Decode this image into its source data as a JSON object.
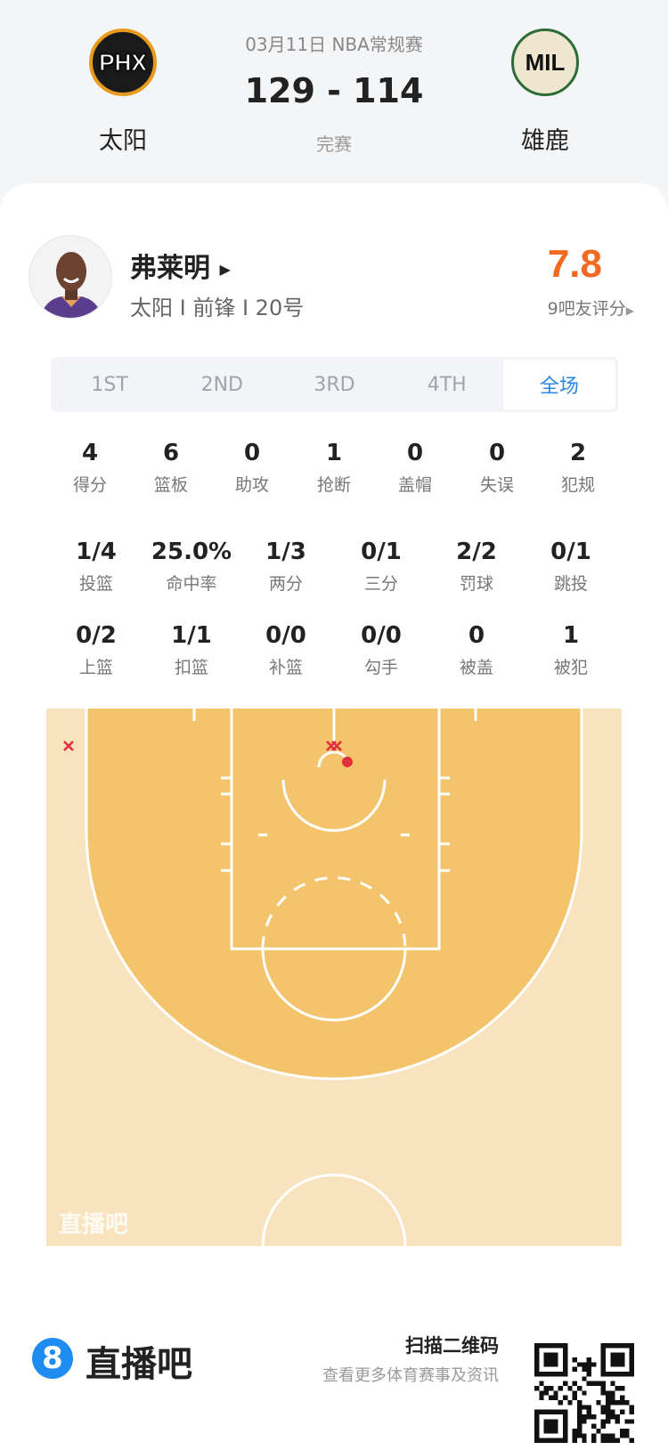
{
  "header": {
    "date_league": "03月11日 NBA常规赛",
    "score": "129 - 114",
    "status": "完赛",
    "home": {
      "abbr": "PHX",
      "name": "太阳"
    },
    "away": {
      "abbr": "MIL",
      "name": "雄鹿"
    }
  },
  "player": {
    "name": "弗莱明",
    "info": "太阳 I 前锋 I 20号",
    "rating": "7.8",
    "rating_label": "9吧友评分",
    "rating_color": "#f26a21"
  },
  "tabs": [
    {
      "label": "1ST"
    },
    {
      "label": "2ND"
    },
    {
      "label": "3RD"
    },
    {
      "label": "4TH"
    },
    {
      "label": "全场",
      "active": true
    }
  ],
  "stats_row1": [
    {
      "v": "4",
      "l": "得分"
    },
    {
      "v": "6",
      "l": "篮板"
    },
    {
      "v": "0",
      "l": "助攻"
    },
    {
      "v": "1",
      "l": "抢断"
    },
    {
      "v": "0",
      "l": "盖帽"
    },
    {
      "v": "0",
      "l": "失误"
    },
    {
      "v": "2",
      "l": "犯规"
    }
  ],
  "stats_row2": [
    {
      "v": "1/4",
      "l": "投篮"
    },
    {
      "v": "25.0%",
      "l": "命中率"
    },
    {
      "v": "1/3",
      "l": "两分"
    },
    {
      "v": "0/1",
      "l": "三分"
    },
    {
      "v": "2/2",
      "l": "罚球"
    },
    {
      "v": "0/1",
      "l": "跳投"
    }
  ],
  "stats_row3": [
    {
      "v": "0/2",
      "l": "上篮"
    },
    {
      "v": "1/1",
      "l": "扣篮"
    },
    {
      "v": "0/0",
      "l": "补篮"
    },
    {
      "v": "0/0",
      "l": "勾手"
    },
    {
      "v": "0",
      "l": "被盖"
    },
    {
      "v": "1",
      "l": "被犯"
    }
  ],
  "court": {
    "watermark": "直播吧",
    "shots": [
      {
        "result": "miss",
        "zone": "left corner three"
      },
      {
        "result": "miss",
        "zone": "rim"
      },
      {
        "result": "miss",
        "zone": "rim"
      },
      {
        "result": "made",
        "zone": "rim"
      }
    ]
  },
  "footer": {
    "brand": "直播吧",
    "logo_glyph": "8",
    "scan": "扫描二维码",
    "desc": "查看更多体育赛事及资讯"
  }
}
